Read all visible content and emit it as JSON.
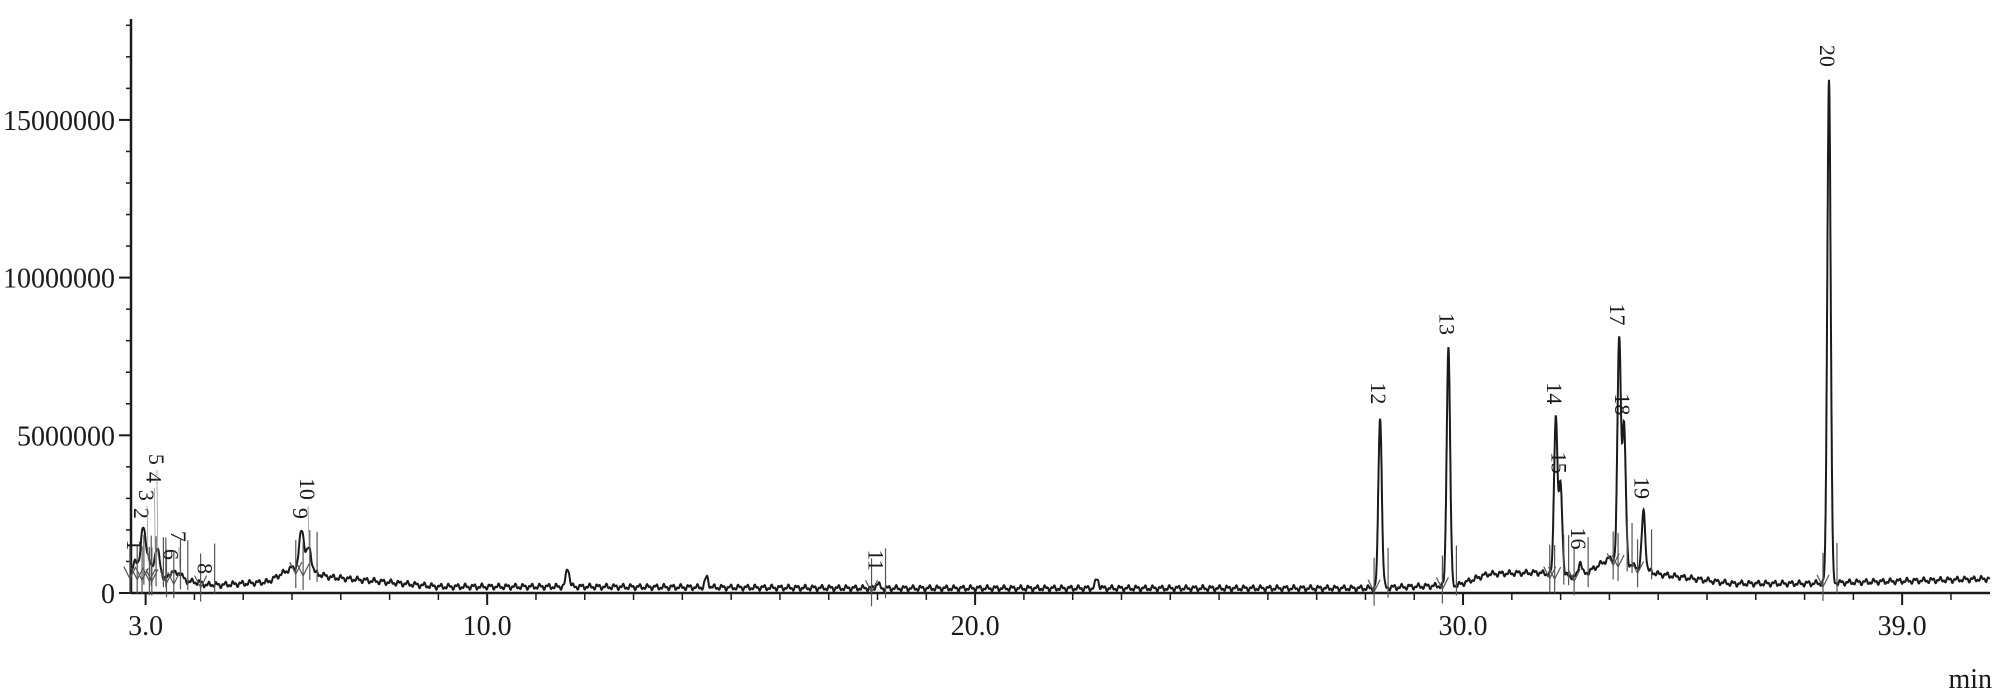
{
  "chart_data": {
    "type": "line",
    "title": "",
    "xlabel": "min",
    "ylabel": "",
    "xlim": [
      2.7,
      40.8
    ],
    "ylim": [
      0,
      18200000
    ],
    "x_ticks": [
      3.0,
      10.0,
      20.0,
      30.0,
      39.0
    ],
    "x_tick_labels": [
      "3.0",
      "10.0",
      "20.0",
      "30.0",
      "39.0"
    ],
    "y_ticks": [
      0,
      5000000,
      10000000,
      15000000
    ],
    "y_tick_labels": [
      "0",
      "5000000",
      "10000000",
      "15000000"
    ],
    "grid": false,
    "line_color": "#1a1a1a",
    "peaks": [
      {
        "label": "1",
        "rt": 2.8,
        "height": 1000000
      },
      {
        "label": "2",
        "rt": 2.95,
        "height": 2000000
      },
      {
        "label": "3",
        "rt": 3.05,
        "height": 1000000
      },
      {
        "label": "4",
        "rt": 3.2,
        "height": 900000
      },
      {
        "label": "5",
        "rt": 3.25,
        "height": 1100000
      },
      {
        "label": "6",
        "rt": 3.55,
        "height": 700000
      },
      {
        "label": "7",
        "rt": 3.7,
        "height": 650000
      },
      {
        "label": "8",
        "rt": 4.25,
        "height": 250000
      },
      {
        "label": "9",
        "rt": 6.2,
        "height": 2000000
      },
      {
        "label": "10",
        "rt": 6.35,
        "height": 1400000
      },
      {
        "label": "11",
        "rt": 18.0,
        "height": 300000
      },
      {
        "label": "12",
        "rt": 28.3,
        "height": 5600000
      },
      {
        "label": "13",
        "rt": 29.7,
        "height": 7800000
      },
      {
        "label": "14",
        "rt": 31.9,
        "height": 5600000
      },
      {
        "label": "15",
        "rt": 32.0,
        "height": 3400000
      },
      {
        "label": "16",
        "rt": 32.4,
        "height": 1000000
      },
      {
        "label": "17",
        "rt": 33.2,
        "height": 8100000
      },
      {
        "label": "18",
        "rt": 33.3,
        "height": 5250000
      },
      {
        "label": "19",
        "rt": 33.7,
        "height": 2600000
      },
      {
        "label": "20",
        "rt": 37.5,
        "height": 16300000
      }
    ],
    "unlabeled_peaks": [
      {
        "rt": 11.65,
        "height": 800000
      },
      {
        "rt": 14.5,
        "height": 500000
      },
      {
        "rt": 22.5,
        "height": 450000
      }
    ],
    "baseline": [
      [
        2.7,
        600000
      ],
      [
        4.5,
        250000
      ],
      [
        5.5,
        350000
      ],
      [
        6.0,
        800000
      ],
      [
        6.8,
        500000
      ],
      [
        9.0,
        200000
      ],
      [
        12.0,
        200000
      ],
      [
        18.0,
        150000
      ],
      [
        24.0,
        150000
      ],
      [
        28.0,
        150000
      ],
      [
        29.9,
        250000
      ],
      [
        30.5,
        600000
      ],
      [
        31.5,
        650000
      ],
      [
        32.4,
        500000
      ],
      [
        33.0,
        1100000
      ],
      [
        34.0,
        600000
      ],
      [
        35.5,
        300000
      ],
      [
        37.0,
        300000
      ],
      [
        40.8,
        450000
      ]
    ]
  }
}
